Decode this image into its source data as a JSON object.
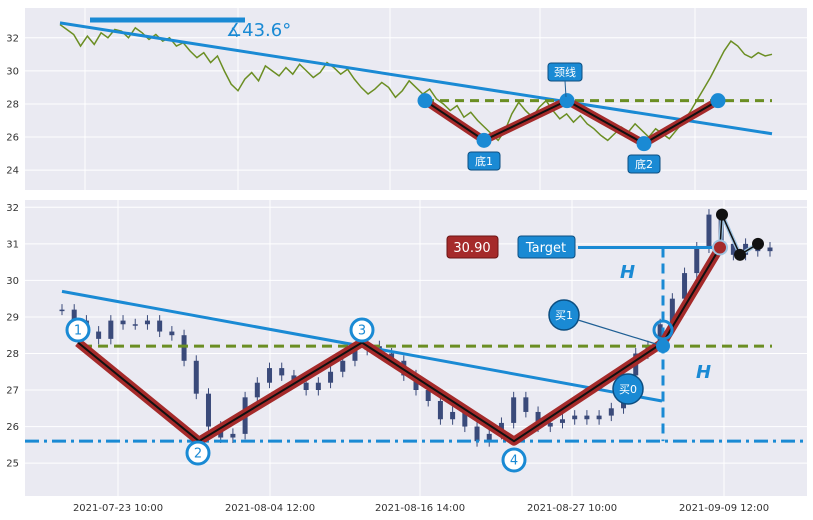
{
  "colors": {
    "price_top": "#6b8e23",
    "trendline": "#1a8ad4",
    "neckline": "#6b8e23",
    "pattern_fill": "#a52a2a",
    "pattern_core": "#111111",
    "marker": "#1a8ad4",
    "candle": "#3a4a7a",
    "target_red": "#a52a2a"
  },
  "top_panel": {
    "angle_label": "∡43.6°",
    "annotations": {
      "neck": "颈线",
      "bottom1": "底1",
      "bottom2": "底2"
    }
  },
  "bottom_panel": {
    "price_box": "30.90",
    "target_box": "Target",
    "height_label_1": "H",
    "height_label_2": "H",
    "buy_labels": [
      "买1",
      "买0"
    ],
    "pivot_labels": [
      "1",
      "2",
      "3",
      "4"
    ]
  },
  "chart_data": [
    {
      "type": "line",
      "ylim": [
        22.8,
        33.8
      ],
      "yticks": [
        "24",
        "26",
        "28",
        "30",
        "32"
      ],
      "series": [
        {
          "values": [
            32.8,
            32.5,
            32.2,
            31.5,
            32.1,
            31.6,
            32.3,
            32.0,
            32.5,
            32.4,
            32.0,
            32.6,
            32.3,
            31.9,
            32.2,
            31.8,
            32.0,
            31.5,
            31.7,
            31.2,
            30.8,
            31.1,
            30.5,
            30.9,
            30.0,
            29.2,
            28.8,
            29.5,
            29.9,
            29.4,
            30.3,
            30.0,
            29.7,
            30.2,
            29.8,
            30.4,
            30.0,
            29.6,
            29.9,
            30.5,
            30.2,
            29.8,
            30.1,
            29.5,
            29.0,
            28.6,
            28.9,
            29.3,
            29.0,
            28.4,
            28.8,
            29.4,
            29.0,
            28.6,
            28.9,
            28.3,
            28.0,
            27.6,
            27.9,
            27.2,
            27.5,
            27.0,
            26.6,
            26.2,
            25.8,
            26.4,
            27.4,
            28.1,
            27.6,
            27.2,
            27.8,
            28.2,
            27.6,
            27.1,
            27.4,
            26.9,
            27.3,
            26.8,
            26.5,
            26.1,
            25.8,
            26.2,
            26.6,
            26.3,
            26.8,
            26.4,
            26.0,
            26.5,
            26.2,
            25.9,
            26.4,
            26.9,
            27.5,
            28.2,
            28.9,
            29.6,
            30.4,
            31.2,
            31.8,
            31.5,
            31.0,
            30.8,
            31.1,
            30.9,
            31.0
          ]
        }
      ],
      "trendline": [
        32.9,
        26.2
      ],
      "neckline": 28.2,
      "pattern_points": [
        28.2,
        25.8,
        28.2,
        25.6,
        28.2
      ]
    },
    {
      "type": "line",
      "ylim": [
        24.1,
        32.2
      ],
      "yticks": [
        "25",
        "26",
        "27",
        "28",
        "29",
        "30",
        "31",
        "32"
      ],
      "xticks": [
        "2021-07-23 10:00",
        "2021-08-04 12:00",
        "2021-08-16 14:00",
        "2021-08-27 10:00",
        "2021-09-09 12:00"
      ],
      "series": [
        {
          "values": [
            29.2,
            28.9,
            28.6,
            28.4,
            28.9,
            28.8,
            28.8,
            28.9,
            28.6,
            28.5,
            27.8,
            26.9,
            26.0,
            25.7,
            25.8,
            26.8,
            27.2,
            27.6,
            27.4,
            27.2,
            27.0,
            27.2,
            27.5,
            27.8,
            28.1,
            28.2,
            28.0,
            27.8,
            27.4,
            27.0,
            26.7,
            26.2,
            26.4,
            26.0,
            25.6,
            25.8,
            26.1,
            26.8,
            26.4,
            26.0,
            26.1,
            26.2,
            26.3,
            26.2,
            26.3,
            26.5,
            27.4,
            28.0,
            28.2,
            28.8,
            29.5,
            30.2,
            30.9,
            31.8,
            31.0,
            30.7,
            31.0,
            30.8,
            30.9
          ]
        }
      ],
      "trendline": [
        29.7,
        26.7
      ],
      "neckline": 28.2,
      "support": 25.6,
      "target": 30.9,
      "pattern_points": [
        28.3,
        25.6,
        28.3,
        25.6,
        28.3,
        30.9
      ],
      "tail_points": [
        31.8,
        30.7,
        31.0
      ]
    }
  ]
}
